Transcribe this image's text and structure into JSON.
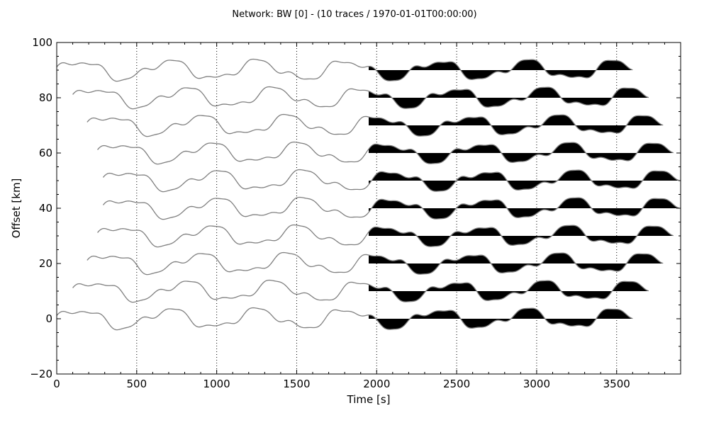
{
  "chart_data": {
    "type": "line",
    "title": "Network: BW [0] - (10 traces / 1970-01-01T00:00:00)",
    "xlabel": "Time [s]",
    "ylabel": "Offset [km]",
    "xlim": [
      0,
      3900
    ],
    "ylim": [
      -20,
      100
    ],
    "x_ticks": [
      "0",
      "500",
      "1000",
      "1500",
      "2000",
      "2500",
      "3000",
      "3500"
    ],
    "x_tick_values": [
      0,
      500,
      1000,
      1500,
      2000,
      2500,
      3000,
      3500
    ],
    "y_ticks": [
      "−20",
      "0",
      "20",
      "40",
      "60",
      "80",
      "100"
    ],
    "y_tick_values": [
      -20,
      0,
      20,
      40,
      60,
      80,
      100
    ],
    "grid": "vertical dotted lines at 500 s intervals",
    "colors": {
      "trace_line": "#808080",
      "fill": "#000000",
      "grid": "#000000"
    },
    "fill_start_time": 1950,
    "series": [
      {
        "offset": 0,
        "start": 0,
        "end": 3600
      },
      {
        "offset": 10,
        "start": 100,
        "end": 3700
      },
      {
        "offset": 20,
        "start": 190,
        "end": 3790
      },
      {
        "offset": 30,
        "start": 255,
        "end": 3855
      },
      {
        "offset": 40,
        "start": 290,
        "end": 3890
      },
      {
        "offset": 50,
        "start": 290,
        "end": 3890
      },
      {
        "offset": 60,
        "start": 255,
        "end": 3855
      },
      {
        "offset": 70,
        "start": 190,
        "end": 3790
      },
      {
        "offset": 80,
        "start": 100,
        "end": 3700
      },
      {
        "offset": 90,
        "start": 0,
        "end": 3600
      }
    ]
  }
}
